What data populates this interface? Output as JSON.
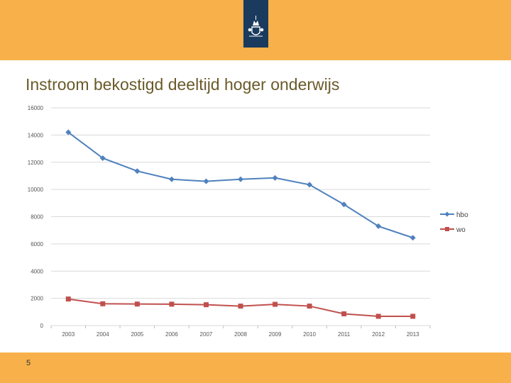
{
  "slide": {
    "title": "Instroom bekostigd deeltijd hoger onderwijs",
    "page_number": "5",
    "logo": "netherlands-coat-of-arms-icon"
  },
  "colors": {
    "band": "#f8b04a",
    "logo_bg": "#1a3a5e",
    "title": "#6a5a2a",
    "hbo": "#4f81bd",
    "wo": "#c0504d",
    "grid": "#d9d9d9"
  },
  "chart_data": {
    "type": "line",
    "title": "",
    "xlabel": "",
    "ylabel": "",
    "categories": [
      "2003",
      "2004",
      "2005",
      "2006",
      "2007",
      "2008",
      "2009",
      "2010",
      "2011",
      "2012",
      "2013"
    ],
    "ylim": [
      0,
      16000
    ],
    "yticks": [
      0,
      2000,
      4000,
      6000,
      8000,
      10000,
      12000,
      14000,
      16000
    ],
    "ytick_labels": [
      "0",
      "2000",
      "4000",
      "6000",
      "8000",
      "10000",
      "12000",
      "14000",
      "16000"
    ],
    "grid": true,
    "legend_position": "right",
    "series": [
      {
        "name": "hbo",
        "color": "#4f81bd",
        "marker": "diamond",
        "values": [
          14200,
          12300,
          11350,
          10750,
          10600,
          10750,
          10850,
          10350,
          8900,
          7300,
          6450
        ]
      },
      {
        "name": "wo",
        "color": "#c0504d",
        "marker": "square",
        "values": [
          1950,
          1600,
          1580,
          1570,
          1530,
          1430,
          1560,
          1430,
          860,
          680,
          680
        ]
      }
    ]
  }
}
